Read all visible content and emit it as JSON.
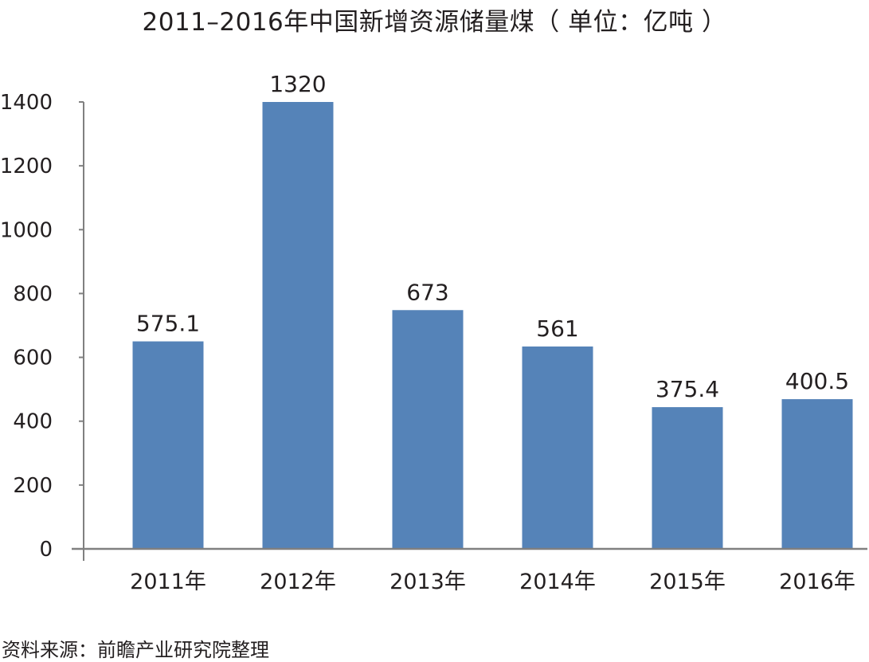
{
  "chart_data": {
    "type": "bar",
    "title": "2011–2016年中国新增资源储量煤（ 单位：亿吨 ）",
    "categories": [
      "2011年",
      "2012年",
      "2013年",
      "2014年",
      "2015年",
      "2016年"
    ],
    "values": [
      575.1,
      1320,
      673,
      561,
      375.4,
      400.5
    ],
    "data_labels": [
      "575.1",
      "1320",
      "673",
      "561",
      "375.4",
      "400.5"
    ],
    "bar_heights": [
      650,
      1400,
      748,
      634,
      444,
      469
    ],
    "xlabel": "",
    "ylabel": "",
    "ylim": [
      0,
      1400
    ],
    "yticks": [
      0,
      200,
      400,
      600,
      800,
      1000,
      1200,
      1400
    ],
    "grid": false,
    "legend": "none",
    "bar_color": "#5583b8",
    "axis_color": "#808080"
  },
  "source": "资料来源：前瞻产业研究院整理"
}
